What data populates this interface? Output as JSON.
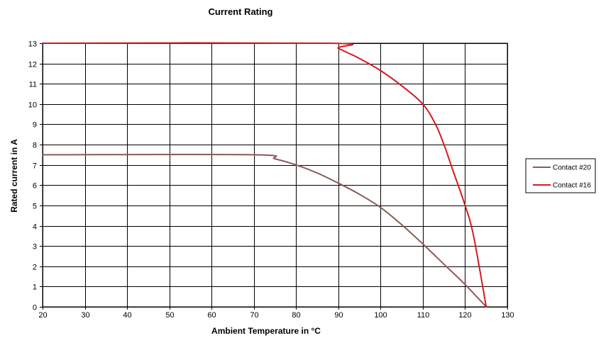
{
  "chart_data": {
    "type": "line",
    "title": "Current Rating",
    "xlabel": "Ambient Temperature in °C",
    "ylabel": "Rated current in A",
    "xlim": [
      20,
      130
    ],
    "ylim": [
      0,
      13
    ],
    "x_ticks": [
      20,
      30,
      40,
      50,
      60,
      70,
      80,
      90,
      100,
      110,
      120,
      130
    ],
    "y_ticks": [
      0,
      1,
      2,
      3,
      4,
      5,
      6,
      7,
      8,
      9,
      10,
      11,
      12,
      13
    ],
    "grid": true,
    "legend_position": "right",
    "series": [
      {
        "name": "Contact #20",
        "color": "#8B5A57",
        "points": [
          [
            20,
            7.5
          ],
          [
            70,
            7.5
          ],
          [
            75,
            7.3
          ],
          [
            80,
            7.0
          ],
          [
            85,
            6.6
          ],
          [
            90,
            6.1
          ],
          [
            95,
            5.55
          ],
          [
            100,
            4.9
          ],
          [
            105,
            4.05
          ],
          [
            110,
            3.1
          ],
          [
            115,
            2.1
          ],
          [
            120,
            1.1
          ],
          [
            125,
            0
          ]
        ]
      },
      {
        "name": "Contact #16",
        "color": "#D7191C",
        "points": [
          [
            20,
            13
          ],
          [
            88,
            13
          ],
          [
            90,
            12.75
          ],
          [
            95,
            12.25
          ],
          [
            100,
            11.65
          ],
          [
            105,
            10.9
          ],
          [
            110,
            10.0
          ],
          [
            113,
            9.0
          ],
          [
            115,
            8.0
          ],
          [
            117,
            6.8
          ],
          [
            120,
            5.0
          ],
          [
            122,
            3.5
          ],
          [
            125,
            0
          ]
        ]
      }
    ]
  }
}
